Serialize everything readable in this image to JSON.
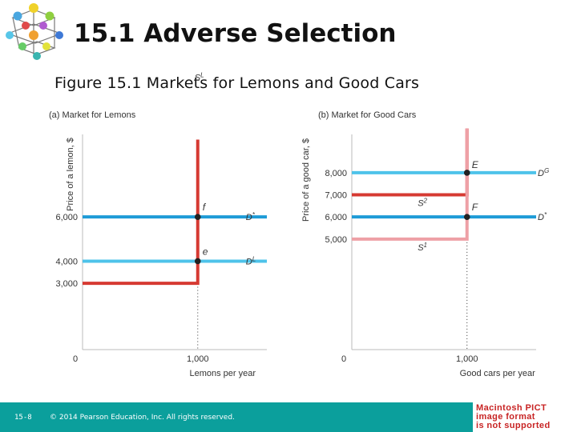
{
  "slide": {
    "title": "15.1 Adverse Selection",
    "figure_caption": "Figure 15.1  Markets for Lemons and Good Cars",
    "footer": {
      "page_number": "15-8",
      "copyright": "© 2014 Pearson Education, Inc. All rights reserved."
    },
    "placeholder_lines": [
      "Macintosh PICT",
      "image format",
      "is not supported"
    ],
    "colors": {
      "red": "#d63a32",
      "light_blue": "#4ec3ea",
      "blue": "#1e9bd7",
      "pink": "#eea0a6",
      "footer_teal": "#0b9f9c",
      "pict_red": "#c82424"
    }
  },
  "chart_data": [
    {
      "type": "line",
      "panel_title": "(a) Market for Lemons",
      "xlabel": "Lemons per year",
      "ylabel": "Price of a lemon, $",
      "xlim": [
        0,
        1600
      ],
      "ylim": [
        0,
        11000
      ],
      "origin_label": "0",
      "x_ticks": [
        {
          "value": 1000,
          "label": "1,000"
        }
      ],
      "y_ticks": [
        {
          "value": 6000,
          "label": "6,000"
        },
        {
          "value": 4000,
          "label": "4,000"
        },
        {
          "value": 3000,
          "label": "3,000"
        }
      ],
      "series": [
        {
          "name": "S^L",
          "label_main": "S",
          "label_sup": "L",
          "label_anchor": [
            1000,
            9200
          ],
          "color": "#d63a32",
          "points": [
            [
              0,
              3000
            ],
            [
              1000,
              3000
            ],
            [
              1000,
              9500
            ]
          ]
        },
        {
          "name": "D*",
          "label_main": "D",
          "label_sup": "*",
          "label_anchor": [
            1000,
            6000
          ],
          "color": "#1e9bd7",
          "points": [
            [
              0,
              6000
            ],
            [
              1600,
              6000
            ]
          ]
        },
        {
          "name": "D^L",
          "label_main": "D",
          "label_sup": "L",
          "label_anchor": [
            1000,
            4000
          ],
          "color": "#4ec3ea",
          "points": [
            [
              0,
              4000
            ],
            [
              1600,
              4000
            ]
          ]
        }
      ],
      "points": [
        {
          "label": "f",
          "x": 1000,
          "y": 6000
        },
        {
          "label": "e",
          "x": 1000,
          "y": 4000
        }
      ],
      "dotted_line": {
        "x": 1000,
        "from": 0,
        "to": 4000
      }
    },
    {
      "type": "line",
      "panel_title": "(b) Market for Good Cars",
      "xlabel": "Good cars per year",
      "ylabel": "Price of a good car, $",
      "xlim": [
        0,
        1600
      ],
      "ylim": [
        0,
        11000
      ],
      "origin_label": "0",
      "x_ticks": [
        {
          "value": 1000,
          "label": "1,000"
        }
      ],
      "y_ticks": [
        {
          "value": 8000,
          "label": "8,000"
        },
        {
          "value": 7000,
          "label": "7,000"
        },
        {
          "value": 6000,
          "label": "6,000"
        },
        {
          "value": 5000,
          "label": "5,000"
        }
      ],
      "series": [
        {
          "name": "S^2",
          "label_main": "S",
          "label_sup": "2",
          "label_anchor": [
            850,
            7000
          ],
          "color": "#d63a32",
          "points": [
            [
              0,
              7000
            ],
            [
              1000,
              7000
            ],
            [
              1000,
              10000
            ]
          ]
        },
        {
          "name": "S^1",
          "label_main": "S",
          "label_sup": "1",
          "label_anchor": [
            850,
            5000
          ],
          "color": "#eea0a6",
          "points": [
            [
              0,
              5000
            ],
            [
              1000,
              5000
            ],
            [
              1000,
              10000
            ]
          ]
        },
        {
          "name": "D^G",
          "label_main": "D",
          "label_sup": "G",
          "label_anchor": [
            1600,
            8000
          ],
          "color": "#4ec3ea",
          "points": [
            [
              0,
              8000
            ],
            [
              1600,
              8000
            ]
          ]
        },
        {
          "name": "D*",
          "label_main": "D",
          "label_sup": "*",
          "label_anchor": [
            1600,
            6000
          ],
          "color": "#1e9bd7",
          "points": [
            [
              0,
              6000
            ],
            [
              1600,
              6000
            ]
          ]
        }
      ],
      "points": [
        {
          "label": "E",
          "x": 1000,
          "y": 8000
        },
        {
          "label": "F",
          "x": 1000,
          "y": 6000
        }
      ],
      "dotted_line": {
        "x": 1000,
        "from": 0,
        "to": 5000
      }
    }
  ]
}
